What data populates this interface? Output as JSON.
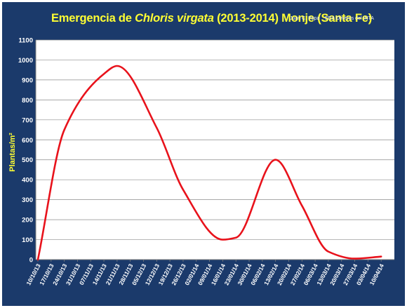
{
  "title": {
    "prefix": "Emergencia de ",
    "species": "Chloris virgata",
    "suffix": " (2013-2014) Monje (Santa Fe)"
  },
  "credits": {
    "author": "Juan C. Papa",
    "organization": "EEA Oliveros del INTA"
  },
  "colors": {
    "background": "#1b3a6b",
    "plot_area": "#ffffff",
    "line": "#e8121b",
    "title": "#ffff33",
    "axis_text": "#ffffff"
  },
  "chart_data": {
    "type": "line",
    "title": "Emergencia de Chloris virgata (2013-2014) Monje (Santa Fe)",
    "xlabel": "",
    "ylabel": "Plantas/m²",
    "ylim": [
      0,
      1100
    ],
    "yticks": [
      0,
      100,
      200,
      300,
      400,
      500,
      600,
      700,
      800,
      900,
      1000,
      1100
    ],
    "grid": "horizontal",
    "legend": "none",
    "smooth": true,
    "categories": [
      "10/10/13",
      "17/10/13",
      "24/10/13",
      "31/10/13",
      "07/11/13",
      "14/11/13",
      "21/11/13",
      "28/11/13",
      "05/12/13",
      "12/12/13",
      "19/12/13",
      "26/12/13",
      "02/01/14",
      "09/01/14",
      "16/01/14",
      "23/01/14",
      "30/01/14",
      "06/02/14",
      "13/02/14",
      "20/02/14",
      "27/02/14",
      "06/03/14",
      "13/03/14",
      "20/03/14",
      "27/03/14",
      "03/04/14",
      "10/04/14"
    ],
    "points": [
      {
        "x": "10/10/13",
        "y": 0
      },
      {
        "x": "24/10/13",
        "y": 650
      },
      {
        "x": "14/11/13",
        "y": 930
      },
      {
        "x": "21/11/13",
        "y": 970
      },
      {
        "x": "12/12/13",
        "y": 660
      },
      {
        "x": "26/12/13",
        "y": 350
      },
      {
        "x": "16/01/14",
        "y": 100
      },
      {
        "x": "23/01/14",
        "y": 110
      },
      {
        "x": "13/02/14",
        "y": 500
      },
      {
        "x": "27/02/14",
        "y": 270
      },
      {
        "x": "13/03/14",
        "y": 40
      },
      {
        "x": "27/03/14",
        "y": 5
      },
      {
        "x": "10/04/14",
        "y": 15
      }
    ]
  }
}
